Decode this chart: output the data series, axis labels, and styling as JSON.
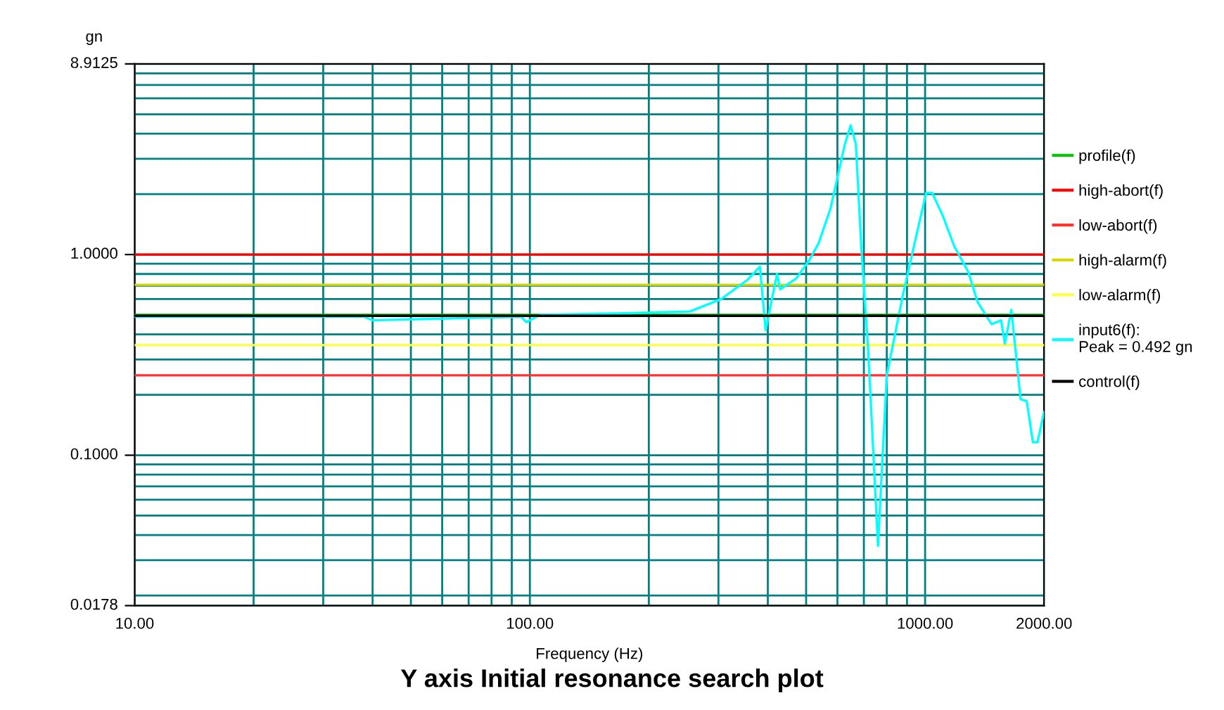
{
  "chart_data": {
    "type": "line",
    "title": "Y axis Initial resonance search plot",
    "xlabel": "Frequency (Hz)",
    "ylabel": "gn",
    "log": "xy",
    "grid": true,
    "legend": "right",
    "marker": "none",
    "line_style": "solid",
    "xlim": [
      10,
      2000
    ],
    "xticks": [
      {
        "value": 10,
        "label": "10.00"
      },
      {
        "value": 100,
        "label": "100.00"
      },
      {
        "value": 1000,
        "label": "1000.00"
      },
      {
        "value": 2000,
        "label": "2000.00"
      }
    ],
    "ylim": [
      0.0178,
      8.9125
    ],
    "yticks": [
      {
        "value": 0.0178,
        "label": "0.0178"
      },
      {
        "value": 0.1,
        "label": "0.1000"
      },
      {
        "value": 1,
        "label": "1.0000"
      },
      {
        "value": 8.9125,
        "label": "8.9125"
      }
    ],
    "series": [
      {
        "name": "profile(f)",
        "color": "#00cc00",
        "x": [
          10,
          2000
        ],
        "values": [
          0.5,
          0.5
        ]
      },
      {
        "name": "high-abort(f)",
        "color": "#ff0000",
        "x": [
          10,
          2000
        ],
        "values": [
          1.0,
          1.0
        ]
      },
      {
        "name": "low-abort(f)",
        "color": "#ff3030",
        "x": [
          10,
          2000
        ],
        "values": [
          0.25,
          0.25
        ]
      },
      {
        "name": "high-alarm(f)",
        "color": "#d8d800",
        "x": [
          10,
          2000
        ],
        "values": [
          0.707,
          0.707
        ]
      },
      {
        "name": "low-alarm(f)",
        "color": "#ffff40",
        "x": [
          10,
          2000
        ],
        "values": [
          0.354,
          0.354
        ]
      },
      {
        "name": "input6(f):\nPeak = 0.492 gn",
        "color": "#00ffff",
        "x": [
          10,
          38,
          40,
          95,
          98,
          106,
          173,
          254,
          305,
          356,
          382,
          395,
          422,
          430,
          472,
          508,
          537,
          576,
          627,
          648,
          668,
          690,
          718,
          760,
          800,
          879,
          940,
          1006,
          1042,
          1107,
          1185,
          1286,
          1358,
          1473,
          1557,
          1592,
          1653,
          1745,
          1808,
          1874,
          1925,
          2000
        ],
        "values": [
          0.49,
          0.49,
          0.47,
          0.49,
          0.46,
          0.5,
          0.51,
          0.52,
          0.6,
          0.75,
          0.87,
          0.42,
          0.8,
          0.67,
          0.76,
          0.93,
          1.13,
          1.69,
          3.56,
          4.4,
          3.56,
          1.07,
          0.33,
          0.0354,
          0.25,
          0.63,
          1.13,
          2.03,
          2.03,
          1.57,
          1.1,
          0.82,
          0.58,
          0.45,
          0.47,
          0.36,
          0.53,
          0.19,
          0.186,
          0.116,
          0.116,
          0.164
        ]
      },
      {
        "name": "control(f)",
        "color": "#000000",
        "x": [
          10,
          2000
        ],
        "values": [
          0.495,
          0.495
        ]
      }
    ]
  }
}
